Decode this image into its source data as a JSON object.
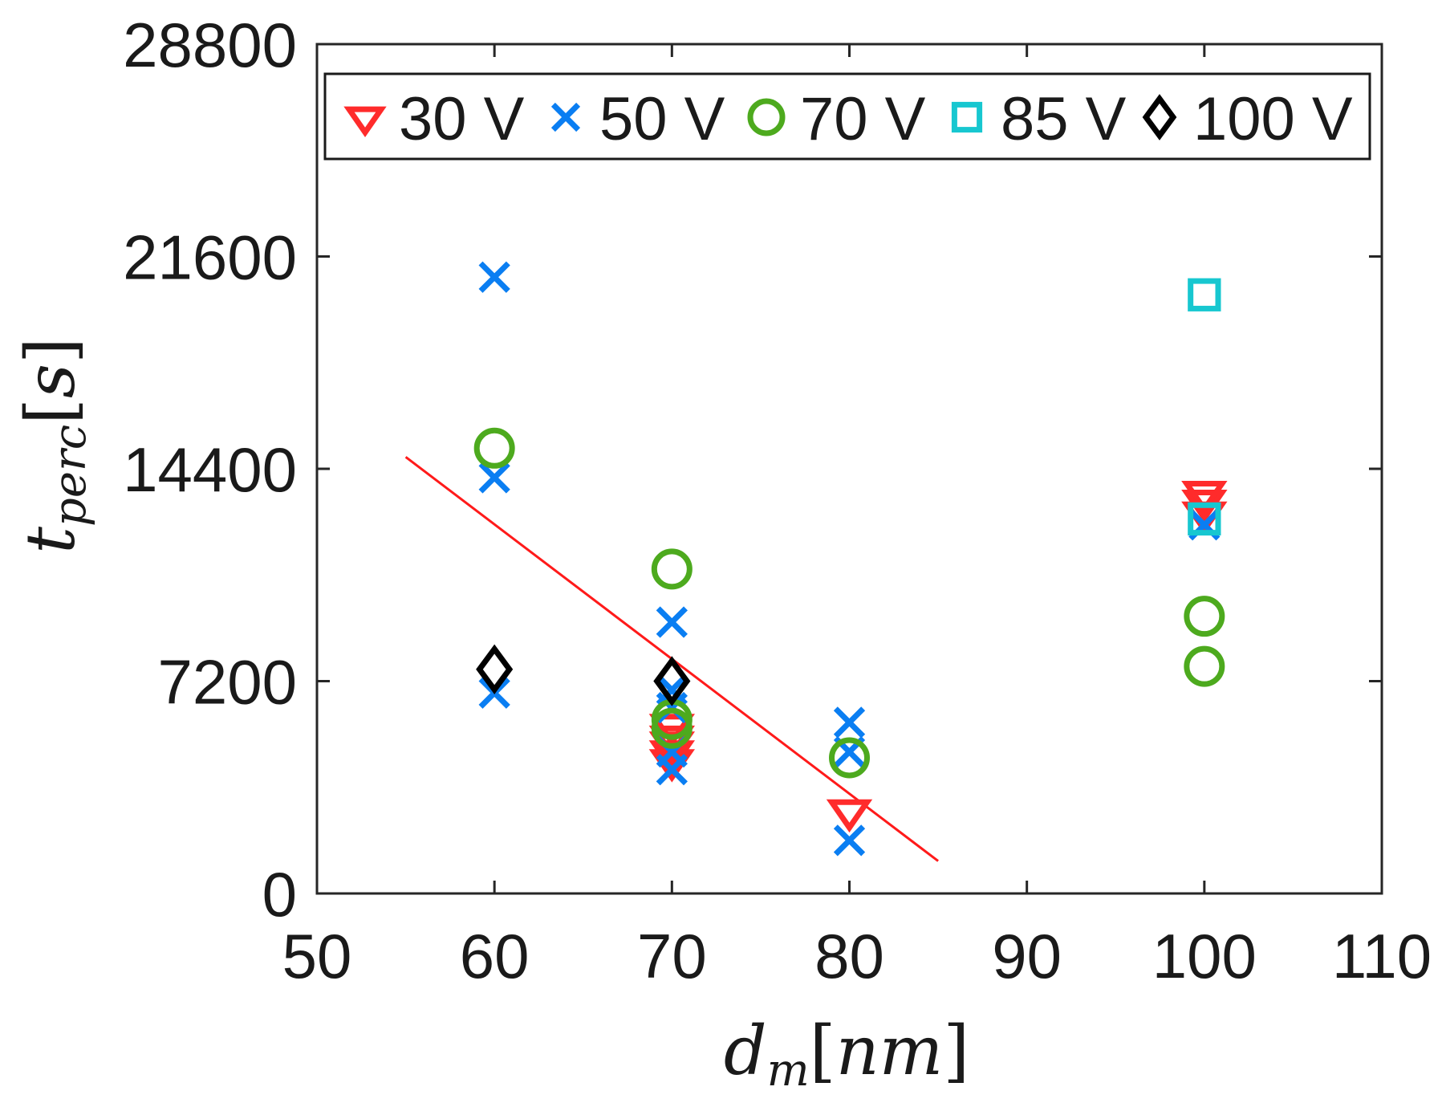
{
  "chart_data": {
    "type": "scatter",
    "title": "",
    "xlabel": {
      "main": "d",
      "sub": "m",
      "unit": "nm"
    },
    "ylabel": {
      "main": "t",
      "sub": "perc",
      "unit": "s"
    },
    "xlim": [
      50,
      110
    ],
    "ylim": [
      0,
      28800
    ],
    "xticks": [
      50,
      60,
      70,
      80,
      90,
      100,
      110
    ],
    "yticks": [
      0,
      7200,
      14400,
      21600,
      28800
    ],
    "grid": false,
    "legend_position": "top",
    "series": [
      {
        "name": "30 V",
        "marker": "triangle-down",
        "color": "#ff2b2b",
        "x": [
          70,
          70,
          70,
          70,
          70,
          80,
          100,
          100,
          100
        ],
        "y": [
          5700,
          5300,
          5100,
          4800,
          4500,
          2800,
          13600,
          13300,
          12900
        ]
      },
      {
        "name": "50 V",
        "marker": "x",
        "color": "#0a7ef2",
        "x": [
          60,
          60,
          60,
          70,
          70,
          70,
          70,
          70,
          80,
          80,
          80,
          100
        ],
        "y": [
          20900,
          14100,
          6800,
          9200,
          6900,
          6300,
          4800,
          4200,
          5800,
          4800,
          1800,
          12500
        ]
      },
      {
        "name": "70 V",
        "marker": "circle",
        "color": "#4daa1e",
        "x": [
          60,
          70,
          70,
          70,
          80,
          100,
          100
        ],
        "y": [
          15100,
          11000,
          5900,
          5600,
          4600,
          9400,
          7700
        ]
      },
      {
        "name": "85 V",
        "marker": "square",
        "color": "#17c7d0",
        "x": [
          100,
          100
        ],
        "y": [
          20300,
          12700
        ]
      },
      {
        "name": "100 V",
        "marker": "diamond",
        "color": "#000000",
        "x": [
          60,
          70
        ],
        "y": [
          7600,
          7200
        ]
      }
    ],
    "fit_line": {
      "color": "#ff1a1a",
      "x": [
        55,
        85
      ],
      "y": [
        14800,
        1100
      ]
    }
  }
}
